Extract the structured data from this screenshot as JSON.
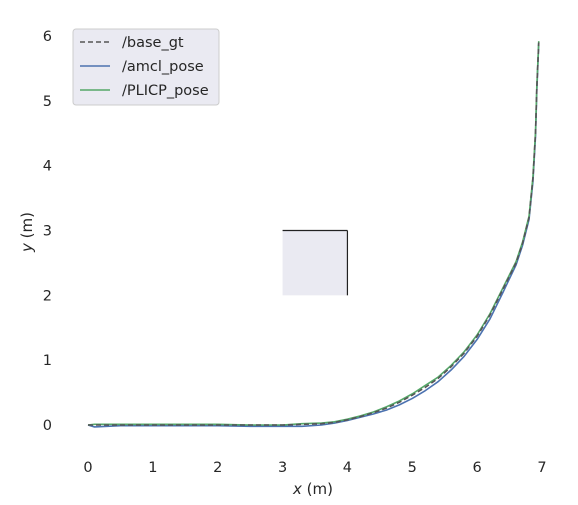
{
  "chart_data": {
    "type": "line",
    "title": "",
    "xlabel_var": "x",
    "xlabel_unit": " (m)",
    "ylabel_var": "y",
    "ylabel_unit": " (m)",
    "xlim": [
      0,
      7
    ],
    "ylim": [
      0,
      6
    ],
    "xticks": [
      "0",
      "1",
      "2",
      "3",
      "4",
      "5",
      "6",
      "7"
    ],
    "yticks": [
      "0",
      "1",
      "2",
      "3",
      "4",
      "5",
      "6"
    ],
    "grid": false,
    "legend_position": "top-left",
    "colors": {
      "base_gt": "#555555",
      "amcl_pose": "#4c72b0",
      "PLICP_pose": "#55a868",
      "legend_bg": "#eaeaf2",
      "inset_bg": "#eaeaf2"
    },
    "series": [
      {
        "name": "/base_gt",
        "style": "dashed",
        "x": [
          0.0,
          0.5,
          1.0,
          1.5,
          2.0,
          2.5,
          3.0,
          3.3,
          3.6,
          3.8,
          4.0,
          4.2,
          4.4,
          4.6,
          4.8,
          5.0,
          5.2,
          5.4,
          5.6,
          5.8,
          6.0,
          6.2,
          6.4,
          6.6,
          6.7,
          6.8,
          6.86,
          6.9,
          6.92,
          6.95
        ],
        "y": [
          0.0,
          0.0,
          0.0,
          0.0,
          0.0,
          0.0,
          0.0,
          0.01,
          0.02,
          0.04,
          0.08,
          0.13,
          0.19,
          0.26,
          0.35,
          0.46,
          0.58,
          0.72,
          0.9,
          1.11,
          1.37,
          1.7,
          2.1,
          2.5,
          2.8,
          3.2,
          3.8,
          4.5,
          5.2,
          5.9
        ]
      },
      {
        "name": "/amcl_pose",
        "style": "solid",
        "x": [
          0.0,
          0.1,
          0.5,
          1.0,
          1.5,
          2.0,
          2.5,
          3.0,
          3.3,
          3.6,
          3.8,
          4.0,
          4.2,
          4.4,
          4.6,
          4.8,
          5.0,
          5.2,
          5.4,
          5.6,
          5.8,
          6.0,
          6.2,
          6.4,
          6.6,
          6.7,
          6.8,
          6.86,
          6.9,
          6.92,
          6.95
        ],
        "y": [
          0.0,
          -0.03,
          -0.01,
          -0.01,
          -0.01,
          -0.01,
          -0.02,
          -0.02,
          -0.02,
          0.0,
          0.03,
          0.07,
          0.12,
          0.17,
          0.23,
          0.31,
          0.41,
          0.53,
          0.67,
          0.85,
          1.06,
          1.32,
          1.64,
          2.05,
          2.47,
          2.77,
          3.17,
          3.75,
          4.45,
          5.15,
          5.9
        ]
      },
      {
        "name": "/PLICP_pose",
        "style": "solid",
        "x": [
          0.0,
          0.1,
          0.5,
          1.0,
          1.5,
          2.0,
          2.5,
          3.0,
          3.3,
          3.6,
          3.8,
          4.0,
          4.2,
          4.4,
          4.6,
          4.8,
          5.0,
          5.2,
          5.4,
          5.6,
          5.8,
          6.0,
          6.2,
          6.4,
          6.6,
          6.7,
          6.8,
          6.86,
          6.9,
          6.92,
          6.95
        ],
        "y": [
          0.0,
          0.01,
          0.01,
          0.01,
          0.01,
          0.01,
          0.0,
          0.0,
          0.02,
          0.03,
          0.05,
          0.09,
          0.14,
          0.2,
          0.28,
          0.37,
          0.48,
          0.61,
          0.74,
          0.92,
          1.13,
          1.39,
          1.72,
          2.12,
          2.52,
          2.82,
          3.22,
          3.82,
          4.52,
          5.22,
          5.92
        ]
      }
    ],
    "inset": {
      "x_range": [
        3.0,
        4.0
      ],
      "y_range": [
        2.0,
        3.0
      ]
    }
  }
}
